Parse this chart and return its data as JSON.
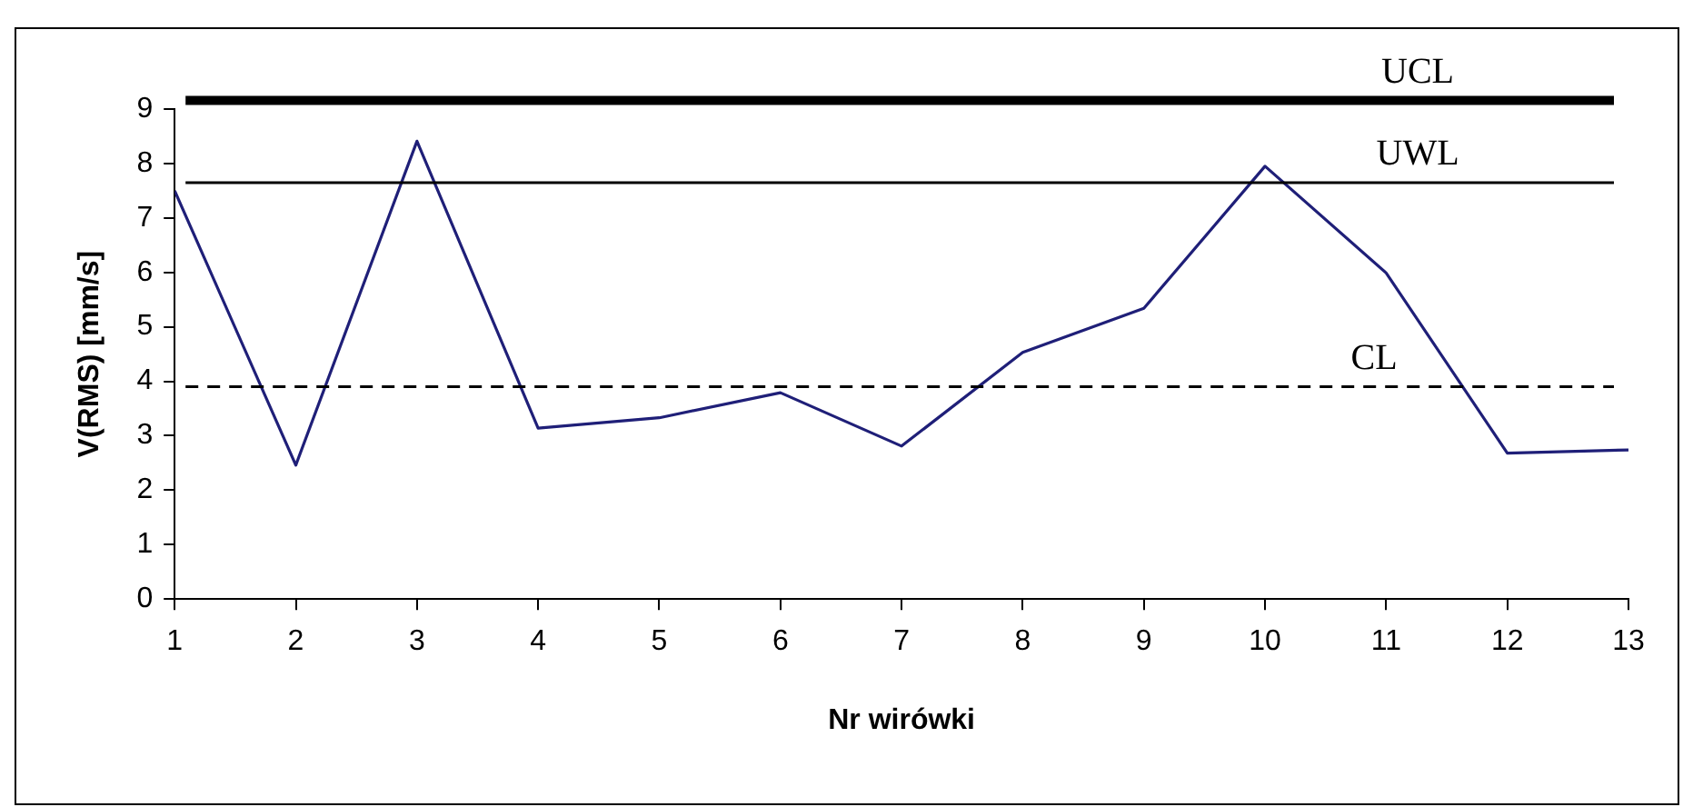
{
  "chart_data": {
    "type": "line",
    "xlabel": "Nr wirówki",
    "ylabel": "V(RMS) [mm/s]",
    "x": [
      1,
      2,
      3,
      4,
      5,
      6,
      7,
      8,
      9,
      10,
      11,
      12,
      13
    ],
    "series": [
      {
        "color": "#1f1f78",
        "values": [
          7.5,
          2.46,
          8.41,
          3.14,
          3.33,
          3.79,
          2.81,
          4.53,
          5.34,
          7.95,
          5.99,
          2.68,
          2.74
        ]
      }
    ],
    "xlim": [
      1,
      13
    ],
    "xticks": [
      1,
      2,
      3,
      4,
      5,
      6,
      7,
      8,
      9,
      10,
      11,
      12,
      13
    ],
    "ylim": [
      0,
      9
    ],
    "yticks": [
      0,
      1,
      2,
      3,
      4,
      5,
      6,
      7,
      8,
      9
    ],
    "ref_lines": [
      {
        "axis": "y",
        "value": 9.16,
        "label": "UCL",
        "color": "#000000",
        "line_style": "solid"
      },
      {
        "axis": "y",
        "value": 7.65,
        "label": "UWL",
        "color": "#000000",
        "line_style": "solid"
      },
      {
        "axis": "y",
        "value": 3.9,
        "label": "CL",
        "color": "#000000",
        "line_style": "dashed"
      }
    ],
    "grid": false,
    "legend": false,
    "marker": "none",
    "line_style": "solid"
  }
}
